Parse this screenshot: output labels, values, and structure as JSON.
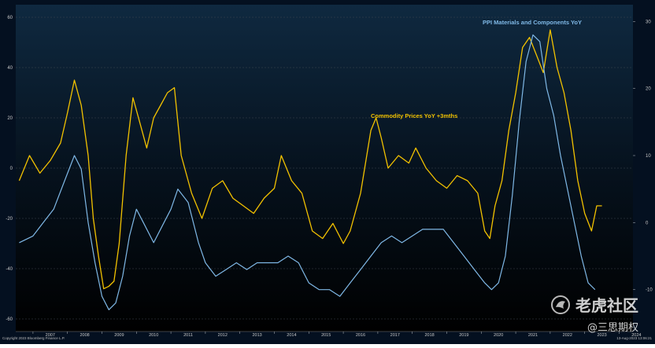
{
  "chart_data": {
    "type": "line",
    "title": "",
    "xlabel": "",
    "x_ticks": [
      "2007",
      "2008",
      "2009",
      "2010",
      "2011",
      "2012",
      "2013",
      "2014",
      "2015",
      "2016",
      "2017",
      "2018",
      "2019",
      "2020",
      "2021",
      "2022",
      "2023",
      "2024"
    ],
    "x_range": [
      2006.5,
      2024.4
    ],
    "y_left": {
      "ticks": [
        "60",
        "40",
        "20",
        "0",
        "-20",
        "-40",
        "-60"
      ],
      "range": [
        -65,
        65
      ]
    },
    "y_right": {
      "ticks": [
        "30",
        "20",
        "10",
        "0",
        "-10"
      ],
      "range": [
        -16.25,
        32.5
      ]
    },
    "grid": "horizontal dashed",
    "series": [
      {
        "name": "Commodity Prices YoY +3mths",
        "axis": "left",
        "color": "#f2c200",
        "x": [
          2006.6,
          2006.9,
          2007.2,
          2007.5,
          2007.8,
          2008.0,
          2008.2,
          2008.4,
          2008.6,
          2008.75,
          2008.9,
          2009.05,
          2009.2,
          2009.35,
          2009.5,
          2009.7,
          2009.9,
          2010.1,
          2010.3,
          2010.5,
          2010.7,
          2010.9,
          2011.1,
          2011.3,
          2011.6,
          2011.9,
          2012.2,
          2012.5,
          2012.8,
          2013.1,
          2013.4,
          2013.7,
          2014.0,
          2014.2,
          2014.5,
          2014.8,
          2015.1,
          2015.4,
          2015.7,
          2016.0,
          2016.2,
          2016.5,
          2016.8,
          2016.95,
          2017.1,
          2017.3,
          2017.6,
          2017.9,
          2018.1,
          2018.4,
          2018.7,
          2019.0,
          2019.3,
          2019.6,
          2019.9,
          2020.1,
          2020.25,
          2020.4,
          2020.6,
          2020.8,
          2021.0,
          2021.2,
          2021.4,
          2021.6,
          2021.8,
          2022.0,
          2022.2,
          2022.4,
          2022.6,
          2022.8,
          2023.0,
          2023.2,
          2023.35,
          2023.5
        ],
        "values": [
          -5,
          5,
          -2,
          3,
          10,
          22,
          35,
          25,
          5,
          -20,
          -35,
          -48,
          -47,
          -45,
          -30,
          5,
          28,
          18,
          8,
          20,
          25,
          30,
          32,
          5,
          -10,
          -20,
          -8,
          -5,
          -12,
          -15,
          -18,
          -12,
          -8,
          5,
          -5,
          -10,
          -25,
          -28,
          -22,
          -30,
          -25,
          -10,
          15,
          20,
          12,
          0,
          5,
          2,
          8,
          0,
          -5,
          -8,
          -3,
          -5,
          -10,
          -25,
          -28,
          -15,
          -5,
          15,
          30,
          48,
          52,
          45,
          38,
          55,
          40,
          30,
          15,
          -5,
          -18,
          -25,
          -15,
          -15
        ]
      },
      {
        "name": "PPI Materials and Components YoY",
        "axis": "right",
        "color": "#7fb8e6",
        "x": [
          2006.6,
          2007.0,
          2007.3,
          2007.6,
          2007.9,
          2008.2,
          2008.4,
          2008.6,
          2008.8,
          2009.0,
          2009.2,
          2009.4,
          2009.6,
          2009.8,
          2010.0,
          2010.2,
          2010.5,
          2010.8,
          2011.0,
          2011.2,
          2011.5,
          2011.8,
          2012.0,
          2012.3,
          2012.6,
          2012.9,
          2013.2,
          2013.5,
          2013.8,
          2014.1,
          2014.4,
          2014.7,
          2015.0,
          2015.3,
          2015.6,
          2015.9,
          2016.2,
          2016.5,
          2016.8,
          2017.1,
          2017.4,
          2017.7,
          2018.0,
          2018.3,
          2018.6,
          2018.9,
          2019.2,
          2019.5,
          2019.8,
          2020.1,
          2020.3,
          2020.5,
          2020.7,
          2020.9,
          2021.1,
          2021.3,
          2021.5,
          2021.7,
          2021.9,
          2022.1,
          2022.3,
          2022.5,
          2022.7,
          2022.9,
          2023.1,
          2023.3
        ],
        "values": [
          -3,
          -2,
          0,
          2,
          6,
          10,
          8,
          0,
          -6,
          -11,
          -13,
          -12,
          -8,
          -2,
          2,
          0,
          -3,
          0,
          2,
          5,
          3,
          -3,
          -6,
          -8,
          -7,
          -6,
          -7,
          -6,
          -6,
          -6,
          -5,
          -6,
          -9,
          -10,
          -10,
          -11,
          -9,
          -7,
          -5,
          -3,
          -2,
          -3,
          -2,
          -1,
          -1,
          -1,
          -3,
          -5,
          -7,
          -9,
          -10,
          -9,
          -5,
          4,
          15,
          24,
          28,
          27,
          20,
          16,
          10,
          5,
          0,
          -5,
          -9,
          -10
        ]
      }
    ]
  },
  "labels": {
    "ppi_label": "PPI Materials and Components YoY",
    "commodity_label": "Commodity Prices YoY +3mths"
  },
  "footer": {
    "copyright": "Copyright 2023 Bloomberg Finance L.P.",
    "timestamp": "13-Aug-2023 13:06:21"
  },
  "watermark": {
    "brand": "老虎社区",
    "handle": "@三思期权"
  },
  "colors": {
    "background": "#041020",
    "plot_top": "#0f2940",
    "plot_bottom": "#000000",
    "grid": "#3c4650",
    "axis_text": "#c8c8c8"
  }
}
